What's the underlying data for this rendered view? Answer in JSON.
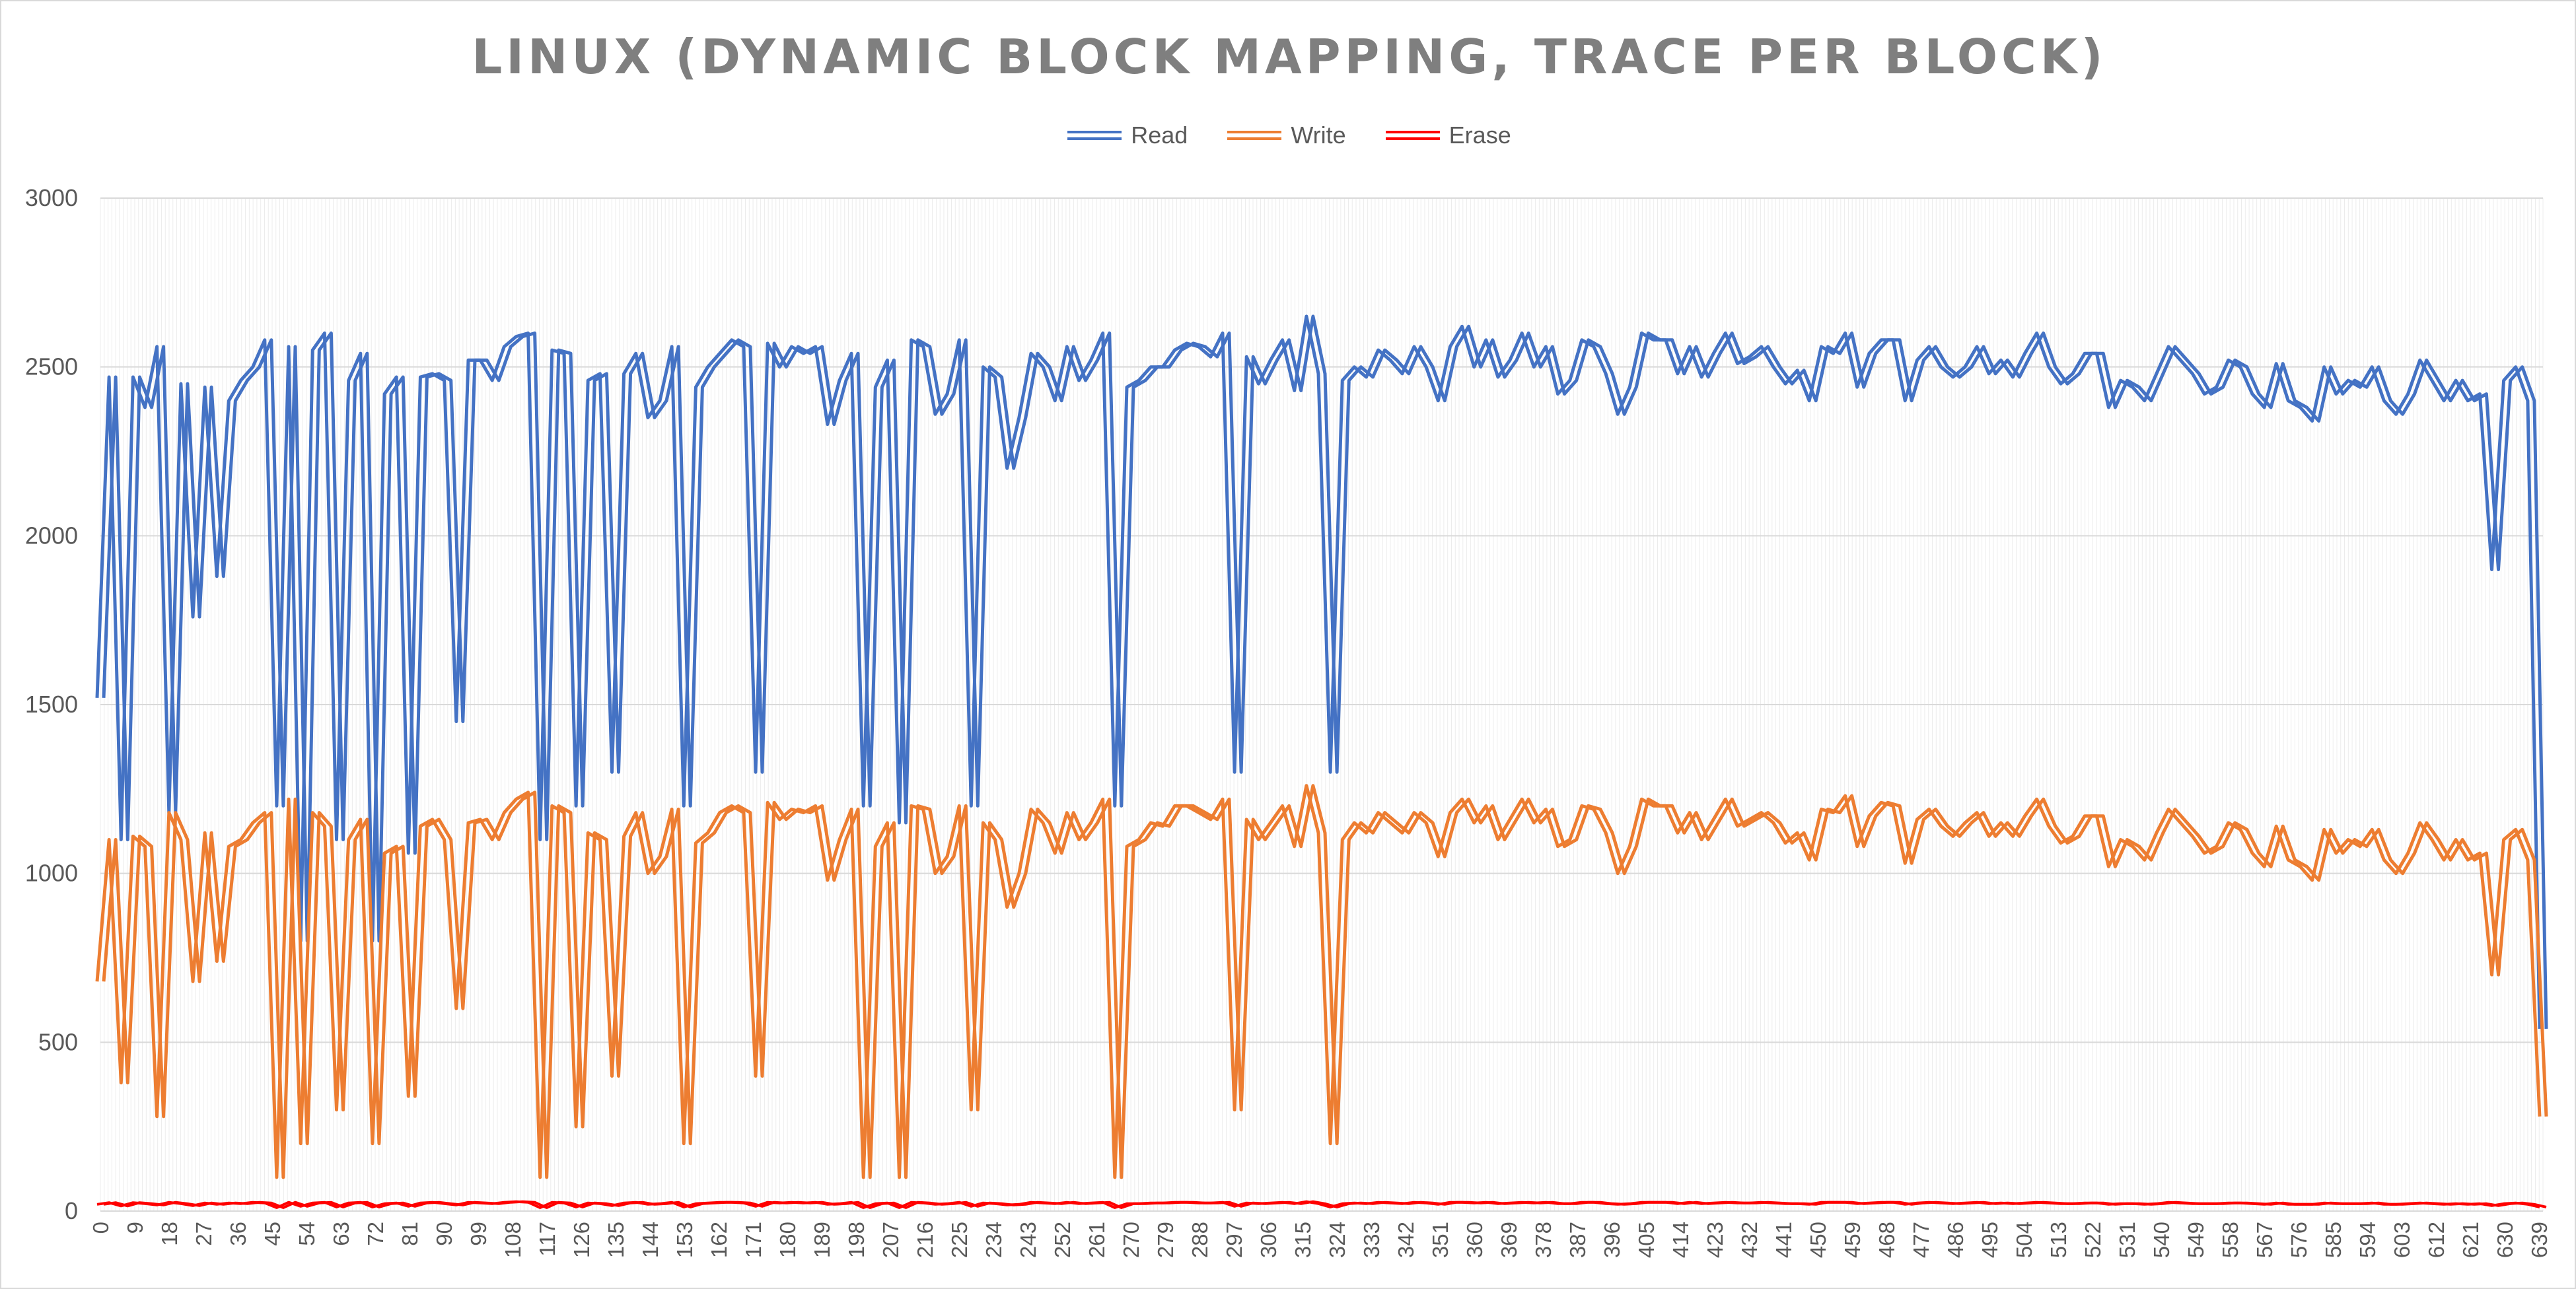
{
  "chart_data": {
    "type": "line",
    "title": "LINUX (DYNAMIC BLOCK MAPPING, TRACE PER BLOCK)",
    "xlabel": "",
    "ylabel": "",
    "ylim": [
      0,
      3000
    ],
    "yticks": [
      0,
      500,
      1000,
      1500,
      2000,
      2500,
      3000
    ],
    "x_range": [
      0,
      640
    ],
    "x_tick_labels": [
      0,
      9,
      18,
      27,
      36,
      45,
      54,
      63,
      72,
      81,
      90,
      99,
      108,
      117,
      126,
      135,
      144,
      153,
      162,
      171,
      180,
      189,
      198,
      207,
      216,
      225,
      234,
      243,
      252,
      261,
      270,
      279,
      288,
      297,
      306,
      315,
      324,
      333,
      342,
      351,
      360,
      369,
      378,
      387,
      396,
      405,
      414,
      423,
      432,
      441,
      450,
      459,
      468,
      477,
      486,
      495,
      504,
      513,
      522,
      531,
      540,
      549,
      558,
      567,
      576,
      585,
      594,
      603,
      612,
      621,
      630,
      639
    ],
    "grid": true,
    "legend_position": "top",
    "note": "Per-block values; series sampled across blocks 0-640 (two trace lines per series as drawn).",
    "series": [
      {
        "name": "Read",
        "color": "#4472c4",
        "approx_range": [
          0,
          2650
        ],
        "values": [
          1520,
          2470,
          1100,
          2470,
          2380,
          2560,
          1180,
          2450,
          1760,
          2440,
          1880,
          2400,
          2460,
          2500,
          2580,
          1200,
          2560,
          800,
          2550,
          2600,
          1100,
          2460,
          2540,
          800,
          2420,
          2470,
          1060,
          2470,
          2480,
          2460,
          1450,
          2520,
          2520,
          2460,
          2560,
          2590,
          2600,
          1100,
          2550,
          2540,
          1200,
          2460,
          2480,
          1300,
          2480,
          2540,
          2350,
          2400,
          2560,
          1200,
          2440,
          2500,
          2540,
          2580,
          2560,
          1300,
          2570,
          2500,
          2560,
          2540,
          2560,
          2330,
          2460,
          2540,
          1200,
          2440,
          2520,
          1150,
          2580,
          2560,
          2360,
          2420,
          2580,
          1200,
          2500,
          2470,
          2200,
          2350,
          2540,
          2500,
          2400,
          2560,
          2460,
          2520,
          2600,
          1200,
          2440,
          2460,
          2500,
          2500,
          2550,
          2570,
          2560,
          2530,
          2600,
          1300,
          2530,
          2450,
          2520,
          2580,
          2430,
          2650,
          2480,
          1300,
          2460,
          2500,
          2470,
          2550,
          2520,
          2480,
          2560,
          2500,
          2400,
          2560,
          2620,
          2500,
          2580,
          2470,
          2520,
          2600,
          2500,
          2560,
          2420,
          2460,
          2580,
          2560,
          2480,
          2360,
          2440,
          2600,
          2580,
          2580,
          2480,
          2560,
          2470,
          2540,
          2600,
          2510,
          2530,
          2560,
          2500,
          2450,
          2490,
          2400,
          2560,
          2540,
          2600,
          2440,
          2540,
          2580,
          2580,
          2400,
          2520,
          2560,
          2500,
          2470,
          2500,
          2560,
          2480,
          2520,
          2470,
          2540,
          2600,
          2500,
          2450,
          2480,
          2540,
          2540,
          2380,
          2460,
          2440,
          2400,
          2480,
          2560,
          2520,
          2480,
          2420,
          2440,
          2520,
          2500,
          2420,
          2380,
          2510,
          2400,
          2380,
          2340,
          2500,
          2420,
          2460,
          2440,
          2500,
          2400,
          2360,
          2420,
          2520,
          2460,
          2400,
          2460,
          2400,
          2420,
          1900,
          2460,
          2500,
          2400,
          540
        ]
      },
      {
        "name": "Write",
        "color": "#ed7d31",
        "approx_range": [
          0,
          1250
        ],
        "values": [
          680,
          1100,
          380,
          1110,
          1080,
          280,
          1180,
          1100,
          680,
          1120,
          740,
          1080,
          1100,
          1150,
          1180,
          100,
          1220,
          200,
          1180,
          1140,
          300,
          1100,
          1160,
          200,
          1060,
          1080,
          340,
          1140,
          1160,
          1100,
          600,
          1150,
          1160,
          1100,
          1180,
          1220,
          1240,
          100,
          1200,
          1180,
          250,
          1120,
          1100,
          400,
          1110,
          1180,
          1000,
          1050,
          1190,
          200,
          1090,
          1120,
          1180,
          1200,
          1180,
          400,
          1210,
          1160,
          1190,
          1180,
          1200,
          980,
          1100,
          1190,
          100,
          1080,
          1150,
          100,
          1200,
          1190,
          1000,
          1050,
          1200,
          300,
          1150,
          1100,
          900,
          1000,
          1190,
          1150,
          1060,
          1180,
          1100,
          1150,
          1220,
          100,
          1080,
          1100,
          1150,
          1140,
          1200,
          1200,
          1180,
          1160,
          1220,
          300,
          1160,
          1100,
          1150,
          1200,
          1080,
          1260,
          1120,
          200,
          1100,
          1150,
          1120,
          1180,
          1150,
          1120,
          1180,
          1150,
          1050,
          1180,
          1220,
          1150,
          1200,
          1100,
          1160,
          1220,
          1150,
          1190,
          1080,
          1100,
          1200,
          1190,
          1120,
          1000,
          1080,
          1220,
          1200,
          1200,
          1120,
          1180,
          1100,
          1160,
          1220,
          1140,
          1160,
          1180,
          1150,
          1090,
          1120,
          1040,
          1190,
          1180,
          1230,
          1080,
          1170,
          1210,
          1200,
          1030,
          1160,
          1190,
          1140,
          1110,
          1150,
          1180,
          1110,
          1150,
          1110,
          1170,
          1220,
          1140,
          1090,
          1110,
          1170,
          1170,
          1020,
          1100,
          1080,
          1040,
          1120,
          1190,
          1150,
          1110,
          1060,
          1080,
          1150,
          1130,
          1060,
          1020,
          1140,
          1040,
          1020,
          980,
          1130,
          1060,
          1100,
          1080,
          1130,
          1040,
          1000,
          1060,
          1150,
          1100,
          1040,
          1100,
          1040,
          1060,
          700,
          1100,
          1130,
          1040,
          280
        ]
      },
      {
        "name": "Erase",
        "color": "#ff0000",
        "approx_range": [
          0,
          30
        ],
        "values": [
          20,
          25,
          15,
          25,
          22,
          18,
          26,
          22,
          16,
          24,
          20,
          24,
          22,
          26,
          24,
          10,
          26,
          14,
          24,
          26,
          12,
          24,
          26,
          12,
          22,
          24,
          14,
          24,
          26,
          22,
          18,
          26,
          24,
          22,
          26,
          28,
          26,
          10,
          26,
          24,
          12,
          24,
          22,
          16,
          24,
          26,
          20,
          22,
          26,
          12,
          22,
          24,
          26,
          26,
          24,
          14,
          26,
          24,
          26,
          24,
          26,
          20,
          22,
          26,
          10,
          22,
          24,
          10,
          26,
          24,
          20,
          22,
          26,
          14,
          24,
          22,
          18,
          20,
          26,
          24,
          22,
          26,
          22,
          24,
          26,
          10,
          22,
          22,
          24,
          24,
          26,
          26,
          24,
          24,
          26,
          14,
          24,
          22,
          24,
          26,
          22,
          28,
          22,
          12,
          22,
          24,
          22,
          26,
          24,
          22,
          26,
          24,
          20,
          26,
          26,
          24,
          26,
          22,
          24,
          26,
          24,
          26,
          22,
          22,
          26,
          26,
          22,
          20,
          22,
          26,
          26,
          26,
          22,
          26,
          22,
          24,
          26,
          24,
          24,
          26,
          24,
          22,
          22,
          20,
          26,
          26,
          26,
          22,
          24,
          26,
          26,
          20,
          24,
          26,
          24,
          22,
          24,
          26,
          22,
          24,
          22,
          24,
          26,
          24,
          22,
          22,
          24,
          24,
          20,
          22,
          22,
          20,
          22,
          26,
          24,
          22,
          22,
          22,
          24,
          24,
          22,
          20,
          24,
          20,
          20,
          20,
          24,
          22,
          22,
          22,
          24,
          20,
          20,
          22,
          24,
          22,
          20,
          22,
          20,
          22,
          16,
          22,
          24,
          20,
          12
        ]
      }
    ]
  }
}
